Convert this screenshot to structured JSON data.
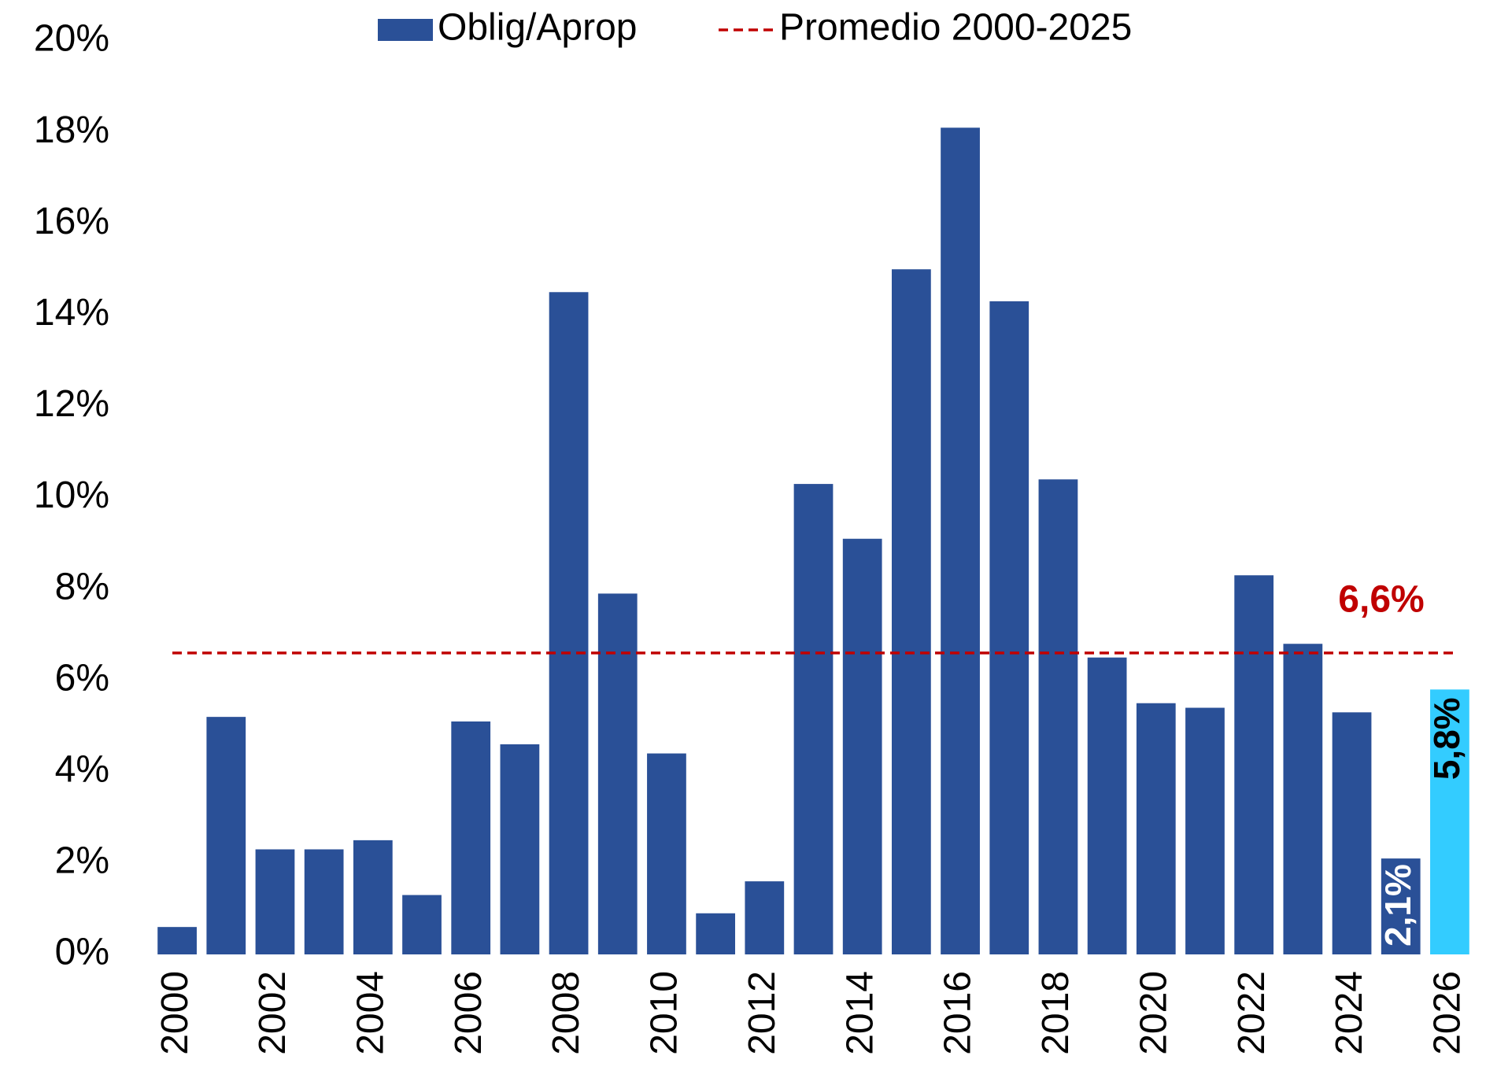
{
  "chart_data": {
    "type": "bar",
    "categories": [
      "2000",
      null,
      "2002",
      null,
      "2004",
      null,
      "2006",
      null,
      "2008",
      null,
      "2010",
      null,
      "2012",
      null,
      "2014",
      null,
      "2016",
      null,
      "2018",
      null,
      "2020",
      null,
      "2022",
      null,
      "2024",
      null,
      "2026"
    ],
    "series": [
      {
        "name": "Oblig/Aprop",
        "color": "#2a5097",
        "values": [
          0.6,
          5.2,
          2.3,
          2.3,
          2.5,
          1.3,
          5.1,
          4.6,
          14.5,
          7.9,
          4.4,
          0.9,
          1.6,
          10.3,
          9.1,
          15.0,
          18.1,
          14.3,
          10.4,
          6.5,
          5.5,
          5.4,
          8.3,
          6.8,
          5.3,
          2.1,
          5.8
        ],
        "colors": [
          "#2a5097",
          "#2a5097",
          "#2a5097",
          "#2a5097",
          "#2a5097",
          "#2a5097",
          "#2a5097",
          "#2a5097",
          "#2a5097",
          "#2a5097",
          "#2a5097",
          "#2a5097",
          "#2a5097",
          "#2a5097",
          "#2a5097",
          "#2a5097",
          "#2a5097",
          "#2a5097",
          "#2a5097",
          "#2a5097",
          "#2a5097",
          "#2a5097",
          "#2a5097",
          "#2a5097",
          "#2a5097",
          "#2a5097",
          "#33ccff"
        ],
        "value_labels": [
          null,
          null,
          null,
          null,
          null,
          null,
          null,
          null,
          null,
          null,
          null,
          null,
          null,
          null,
          null,
          null,
          null,
          null,
          null,
          null,
          null,
          null,
          null,
          null,
          null,
          "2,1%",
          "5,8%"
        ]
      }
    ],
    "reference_line": {
      "name": "Promedio 2000-2025",
      "value": 6.6,
      "label": "6,6%",
      "color": "#c00000"
    },
    "ylim": [
      0,
      20
    ],
    "yticks": [
      {
        "value": 0,
        "label": "0%"
      },
      {
        "value": 2,
        "label": "2%"
      },
      {
        "value": 4,
        "label": "4%"
      },
      {
        "value": 6,
        "label": "6%"
      },
      {
        "value": 8,
        "label": "8%"
      },
      {
        "value": 10,
        "label": "10%"
      },
      {
        "value": 12,
        "label": "12%"
      },
      {
        "value": 14,
        "label": "14%"
      },
      {
        "value": 16,
        "label": "16%"
      },
      {
        "value": 18,
        "label": "18%"
      },
      {
        "value": 20,
        "label": "20%"
      }
    ],
    "grid": false,
    "legend": "top"
  }
}
